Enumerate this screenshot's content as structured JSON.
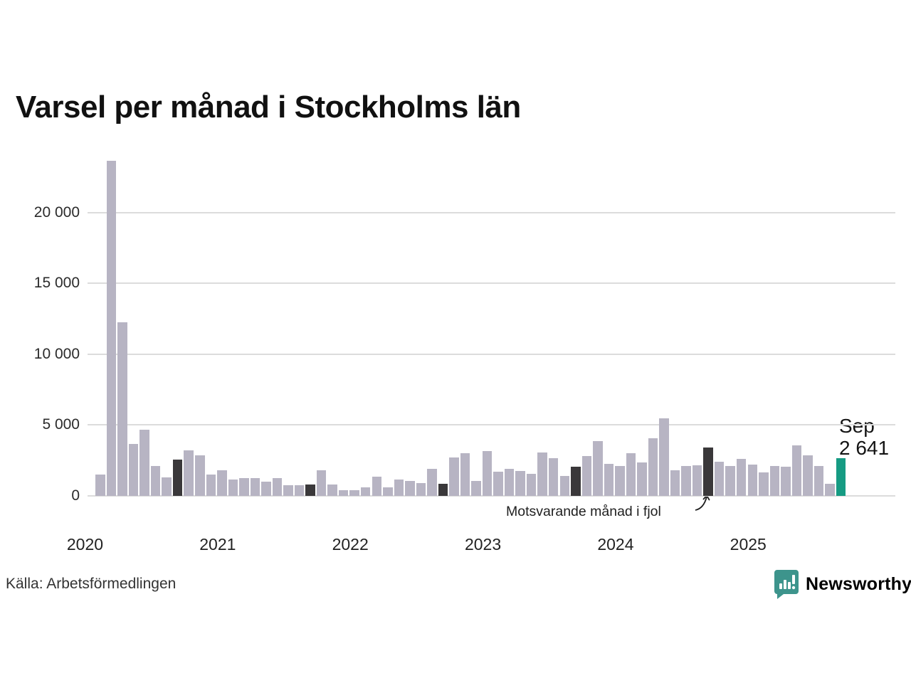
{
  "title": "Varsel per månad i Stockholms län",
  "source": "Källa: Arbetsförmedlingen",
  "branding": {
    "logo_text": "Newsworthy",
    "logo_color": "#3d948c",
    "logo_icon": "newsworthy-speech-bubble-chart-icon"
  },
  "chart_data": {
    "type": "bar",
    "title": "Varsel per månad i Stockholms län",
    "xlabel": "",
    "ylabel": "",
    "ylim": [
      0,
      23700
    ],
    "grid": true,
    "legend": "none",
    "yticks": [
      {
        "value": 0,
        "label": "0"
      },
      {
        "value": 5000,
        "label": "5 000"
      },
      {
        "value": 10000,
        "label": "10 000"
      },
      {
        "value": 15000,
        "label": "15 000"
      },
      {
        "value": 20000,
        "label": "20 000"
      }
    ],
    "years": [
      "2020",
      "2021",
      "2022",
      "2023",
      "2024",
      "2025"
    ],
    "annotation": "Motsvarande månad i fjol",
    "annotation_target_month": "Sep 2024",
    "last_point_label": {
      "month": "Sep",
      "value": "2 641"
    },
    "colors": {
      "normal": "#b7b4c3",
      "fjol": "#3a383a",
      "current": "#169b83",
      "grid": "#dcdcdc"
    },
    "points": [
      {
        "month": "Feb 2020",
        "value": 1510,
        "kind": "normal"
      },
      {
        "month": "Mar 2020",
        "value": 23650,
        "kind": "normal"
      },
      {
        "month": "Apr 2020",
        "value": 12230,
        "kind": "normal"
      },
      {
        "month": "May 2020",
        "value": 3680,
        "kind": "normal"
      },
      {
        "month": "Jun 2020",
        "value": 4690,
        "kind": "normal"
      },
      {
        "month": "Jul 2020",
        "value": 2130,
        "kind": "normal"
      },
      {
        "month": "Aug 2020",
        "value": 1320,
        "kind": "normal"
      },
      {
        "month": "Sep 2020",
        "value": 2540,
        "kind": "fjol"
      },
      {
        "month": "Oct 2020",
        "value": 3210,
        "kind": "normal"
      },
      {
        "month": "Nov 2020",
        "value": 2860,
        "kind": "normal"
      },
      {
        "month": "Dec 2020",
        "value": 1520,
        "kind": "normal"
      },
      {
        "month": "Jan 2021",
        "value": 1800,
        "kind": "normal"
      },
      {
        "month": "Feb 2021",
        "value": 1170,
        "kind": "normal"
      },
      {
        "month": "Mar 2021",
        "value": 1280,
        "kind": "normal"
      },
      {
        "month": "Apr 2021",
        "value": 1260,
        "kind": "normal"
      },
      {
        "month": "May 2021",
        "value": 1000,
        "kind": "normal"
      },
      {
        "month": "Jun 2021",
        "value": 1260,
        "kind": "normal"
      },
      {
        "month": "Jul 2021",
        "value": 750,
        "kind": "normal"
      },
      {
        "month": "Aug 2021",
        "value": 750,
        "kind": "normal"
      },
      {
        "month": "Sep 2021",
        "value": 790,
        "kind": "fjol"
      },
      {
        "month": "Oct 2021",
        "value": 1790,
        "kind": "normal"
      },
      {
        "month": "Nov 2021",
        "value": 790,
        "kind": "normal"
      },
      {
        "month": "Dec 2021",
        "value": 390,
        "kind": "normal"
      },
      {
        "month": "Jan 2022",
        "value": 420,
        "kind": "normal"
      },
      {
        "month": "Feb 2022",
        "value": 590,
        "kind": "normal"
      },
      {
        "month": "Mar 2022",
        "value": 1340,
        "kind": "normal"
      },
      {
        "month": "Apr 2022",
        "value": 620,
        "kind": "normal"
      },
      {
        "month": "May 2022",
        "value": 1160,
        "kind": "normal"
      },
      {
        "month": "Jun 2022",
        "value": 1040,
        "kind": "normal"
      },
      {
        "month": "Jul 2022",
        "value": 900,
        "kind": "normal"
      },
      {
        "month": "Aug 2022",
        "value": 1910,
        "kind": "normal"
      },
      {
        "month": "Sep 2022",
        "value": 870,
        "kind": "fjol"
      },
      {
        "month": "Oct 2022",
        "value": 2710,
        "kind": "normal"
      },
      {
        "month": "Nov 2022",
        "value": 2990,
        "kind": "normal"
      },
      {
        "month": "Dec 2022",
        "value": 1040,
        "kind": "normal"
      },
      {
        "month": "Jan 2023",
        "value": 3170,
        "kind": "normal"
      },
      {
        "month": "Feb 2023",
        "value": 1700,
        "kind": "normal"
      },
      {
        "month": "Mar 2023",
        "value": 1920,
        "kind": "normal"
      },
      {
        "month": "Apr 2023",
        "value": 1770,
        "kind": "normal"
      },
      {
        "month": "May 2023",
        "value": 1550,
        "kind": "normal"
      },
      {
        "month": "Jun 2023",
        "value": 3050,
        "kind": "normal"
      },
      {
        "month": "Jul 2023",
        "value": 2640,
        "kind": "normal"
      },
      {
        "month": "Aug 2023",
        "value": 1390,
        "kind": "normal"
      },
      {
        "month": "Sep 2023",
        "value": 2050,
        "kind": "fjol"
      },
      {
        "month": "Oct 2023",
        "value": 2830,
        "kind": "normal"
      },
      {
        "month": "Nov 2023",
        "value": 3850,
        "kind": "normal"
      },
      {
        "month": "Dec 2023",
        "value": 2260,
        "kind": "normal"
      },
      {
        "month": "Jan 2024",
        "value": 2090,
        "kind": "normal"
      },
      {
        "month": "Feb 2024",
        "value": 3030,
        "kind": "normal"
      },
      {
        "month": "Mar 2024",
        "value": 2360,
        "kind": "normal"
      },
      {
        "month": "Apr 2024",
        "value": 4070,
        "kind": "normal"
      },
      {
        "month": "May 2024",
        "value": 5460,
        "kind": "normal"
      },
      {
        "month": "Jun 2024",
        "value": 1820,
        "kind": "normal"
      },
      {
        "month": "Jul 2024",
        "value": 2090,
        "kind": "normal"
      },
      {
        "month": "Aug 2024",
        "value": 2170,
        "kind": "normal"
      },
      {
        "month": "Sep 2024",
        "value": 3400,
        "kind": "fjol"
      },
      {
        "month": "Oct 2024",
        "value": 2420,
        "kind": "normal"
      },
      {
        "month": "Nov 2024",
        "value": 2090,
        "kind": "normal"
      },
      {
        "month": "Dec 2024",
        "value": 2590,
        "kind": "normal"
      },
      {
        "month": "Jan 2025",
        "value": 2210,
        "kind": "normal"
      },
      {
        "month": "Feb 2025",
        "value": 1670,
        "kind": "normal"
      },
      {
        "month": "Mar 2025",
        "value": 2090,
        "kind": "normal"
      },
      {
        "month": "Apr 2025",
        "value": 2060,
        "kind": "normal"
      },
      {
        "month": "May 2025",
        "value": 3550,
        "kind": "normal"
      },
      {
        "month": "Jun 2025",
        "value": 2840,
        "kind": "normal"
      },
      {
        "month": "Jul 2025",
        "value": 2120,
        "kind": "normal"
      },
      {
        "month": "Aug 2025",
        "value": 840,
        "kind": "normal"
      },
      {
        "month": "Sep 2025",
        "value": 2641,
        "kind": "current"
      }
    ]
  }
}
